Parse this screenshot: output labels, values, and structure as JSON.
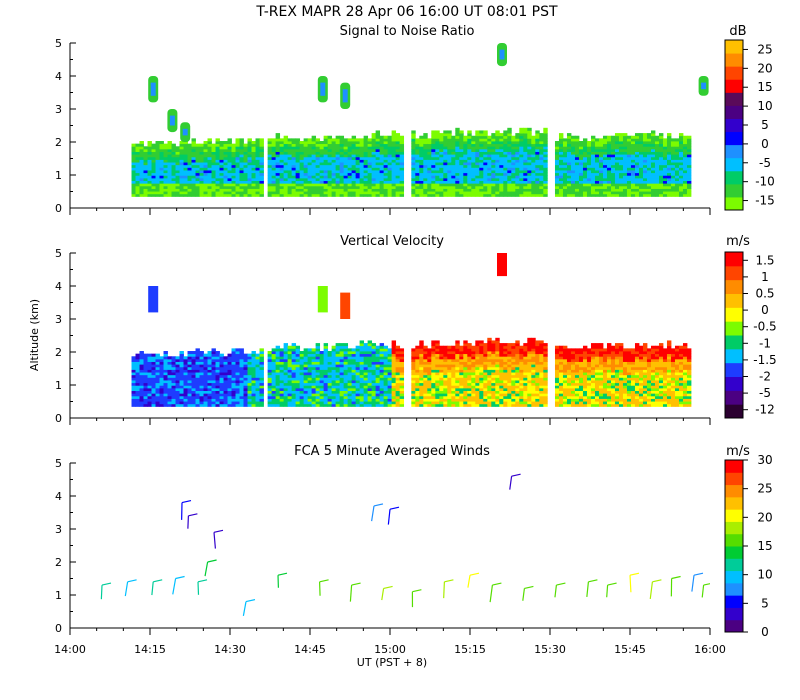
{
  "header": {
    "title": "T-REX  MAPR 28 Apr 06   16:00 UT   08:01   PST"
  },
  "chart_data": [
    {
      "type": "heatmap",
      "title": "Signal to Noise Ratio",
      "xlabel": "",
      "ylabel": "",
      "ylim": [
        0,
        5
      ],
      "y_ticks": [
        "0",
        "1",
        "2",
        "3",
        "4",
        "5"
      ],
      "colorbar_unit": "dB",
      "colorbar_labels": [
        "-15",
        "-10",
        "-5",
        "0",
        "5",
        "10",
        "15",
        "20",
        "25"
      ],
      "colorbar_colors": [
        "#7cfc00",
        "#32cd32",
        "#00cc66",
        "#00bfff",
        "#1e90ff",
        "#0000ff",
        "#3300cc",
        "#4b0082",
        "#5a0a5a",
        "#ff0000",
        "#ff4500",
        "#ff8c00",
        "#ffc000"
      ],
      "segments": [
        {
          "start": 0.3,
          "end": 0.98,
          "top": 1.9
        },
        {
          "start": 1.02,
          "end": 1.73,
          "top": 2.1
        },
        {
          "start": 1.78,
          "end": 2.49,
          "top": 2.2
        },
        {
          "start": 2.54,
          "end": 3.25,
          "top": 2.1
        }
      ]
    },
    {
      "type": "heatmap",
      "title": "Vertical Velocity",
      "xlabel": "",
      "ylabel": "Altitude (km)",
      "ylim": [
        0,
        5
      ],
      "y_ticks": [
        "0",
        "1",
        "2",
        "3",
        "4",
        "5"
      ],
      "colorbar_unit": "m/s",
      "colorbar_labels": [
        "-12",
        "-5",
        "-2",
        "-1.5",
        "-1",
        "-0.5",
        "0",
        "0.5",
        "1",
        "1.5"
      ],
      "colorbar_colors": [
        "#2b0030",
        "#4b0082",
        "#3300cc",
        "#1e3cff",
        "#00bfff",
        "#00cc66",
        "#7cfc00",
        "#ffff00",
        "#ffc000",
        "#ff8c00",
        "#ff4500",
        "#ff0000"
      ],
      "segments": [
        {
          "start": 0.3,
          "end": 0.98,
          "top": 1.9
        },
        {
          "start": 1.02,
          "end": 1.73,
          "top": 2.1
        },
        {
          "start": 1.78,
          "end": 2.49,
          "top": 2.2
        },
        {
          "start": 2.54,
          "end": 3.25,
          "top": 2.1
        }
      ]
    },
    {
      "type": "scatter",
      "title": "FCA 5 Minute Averaged Winds",
      "xlabel": "UT  (PST + 8)",
      "ylabel": "",
      "ylim": [
        0,
        5
      ],
      "y_ticks": [
        "0",
        "1",
        "2",
        "3",
        "4",
        "5"
      ],
      "x_ticks": [
        "14:00",
        "14:15",
        "14:30",
        "14:45",
        "15:00",
        "15:15",
        "15:30",
        "15:45",
        "16:00"
      ],
      "colorbar_unit": "m/s",
      "colorbar_labels": [
        "0",
        "5",
        "10",
        "15",
        "20",
        "25",
        "30"
      ],
      "colorbar_colors": [
        "#4b0082",
        "#3300cc",
        "#0000ff",
        "#1e90ff",
        "#00bfff",
        "#00cc99",
        "#00cc33",
        "#55dd00",
        "#aaee00",
        "#ffff00",
        "#ffc000",
        "#ff8c00",
        "#ff4500",
        "#ff0000"
      ],
      "barbs": [
        {
          "t": 14.1,
          "alt": 1.3,
          "speed": 12
        },
        {
          "t": 14.18,
          "alt": 1.4,
          "speed": 10
        },
        {
          "t": 14.26,
          "alt": 1.4,
          "speed": 11
        },
        {
          "t": 14.33,
          "alt": 1.5,
          "speed": 9
        },
        {
          "t": 14.35,
          "alt": 3.8,
          "speed": 4
        },
        {
          "t": 14.37,
          "alt": 3.4,
          "speed": 3
        },
        {
          "t": 14.4,
          "alt": 1.4,
          "speed": 12
        },
        {
          "t": 14.43,
          "alt": 2.0,
          "speed": 14
        },
        {
          "t": 14.45,
          "alt": 2.9,
          "speed": 2
        },
        {
          "t": 14.55,
          "alt": 0.8,
          "speed": 10
        },
        {
          "t": 14.65,
          "alt": 1.6,
          "speed": 14
        },
        {
          "t": 14.78,
          "alt": 1.4,
          "speed": 16
        },
        {
          "t": 14.88,
          "alt": 1.3,
          "speed": 17
        },
        {
          "t": 14.95,
          "alt": 3.7,
          "speed": 6
        },
        {
          "t": 14.98,
          "alt": 1.2,
          "speed": 18
        },
        {
          "t": 15.0,
          "alt": 3.6,
          "speed": 5
        },
        {
          "t": 15.07,
          "alt": 1.1,
          "speed": 17
        },
        {
          "t": 15.17,
          "alt": 1.4,
          "speed": 19
        },
        {
          "t": 15.25,
          "alt": 1.6,
          "speed": 21
        },
        {
          "t": 15.32,
          "alt": 1.3,
          "speed": 17
        },
        {
          "t": 15.38,
          "alt": 4.6,
          "speed": 3
        },
        {
          "t": 15.42,
          "alt": 1.2,
          "speed": 16
        },
        {
          "t": 15.52,
          "alt": 1.3,
          "speed": 16
        },
        {
          "t": 15.62,
          "alt": 1.4,
          "speed": 16
        },
        {
          "t": 15.68,
          "alt": 1.3,
          "speed": 15
        },
        {
          "t": 15.75,
          "alt": 1.6,
          "speed": 20
        },
        {
          "t": 15.82,
          "alt": 1.4,
          "speed": 18
        },
        {
          "t": 15.88,
          "alt": 1.5,
          "speed": 15
        },
        {
          "t": 15.95,
          "alt": 1.6,
          "speed": 7
        },
        {
          "t": 15.98,
          "alt": 1.3,
          "speed": 17
        }
      ]
    }
  ]
}
